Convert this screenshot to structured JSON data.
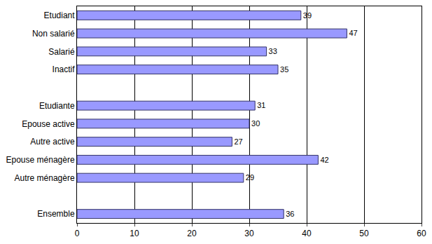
{
  "chart_data": {
    "type": "bar",
    "orientation": "horizontal",
    "categories": [
      "Etudiant",
      "Non salarié",
      "Salarié",
      "Inactif",
      null,
      "Etudiante",
      "Epouse active",
      "Autre active",
      "Epouse ménagère",
      "Autre ménagère",
      null,
      "Ensemble"
    ],
    "values": [
      39,
      47,
      33,
      35,
      null,
      31,
      30,
      27,
      42,
      29,
      null,
      36
    ],
    "color": "#9999ff",
    "xlim": [
      0,
      60
    ],
    "xticks": [
      0,
      10,
      20,
      30,
      40,
      50,
      60
    ],
    "grid": true,
    "data_labels": true
  }
}
